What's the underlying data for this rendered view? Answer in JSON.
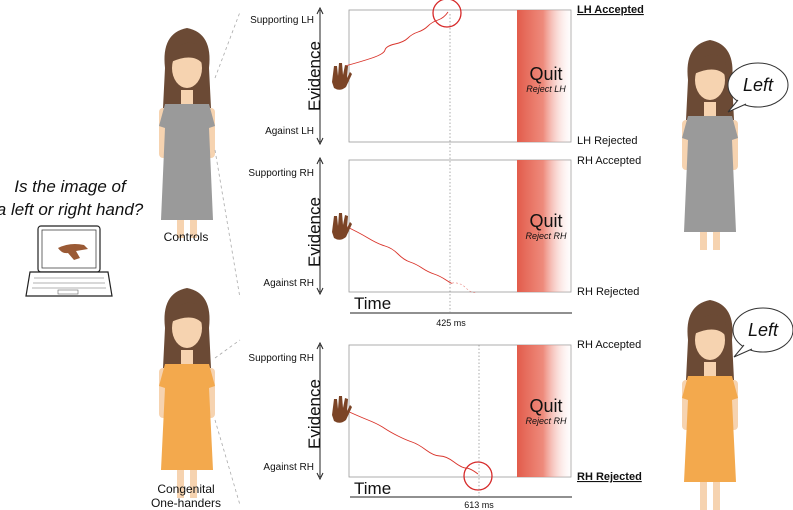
{
  "question": {
    "line1": "Is the image of",
    "line2": "a left or right hand?"
  },
  "groups": {
    "controls_label": "Controls",
    "congenital_line1": "Congenital",
    "congenital_line2": "One-handers"
  },
  "panel1": {
    "y_top": "Supporting LH",
    "y_bottom": "Against LH",
    "y_axis": "Evidence",
    "right_top": "LH Accepted",
    "right_bottom": "LH Rejected",
    "quit": "Quit",
    "reject": "Reject LH"
  },
  "panel2": {
    "y_top": "Supporting RH",
    "y_bottom": "Against RH",
    "y_axis": "Evidence",
    "right_top": "RH Accepted",
    "right_bottom": "RH Rejected",
    "quit": "Quit",
    "reject": "Reject RH",
    "time_label": "Time",
    "ms": "425 ms"
  },
  "panel3": {
    "y_top": "Supporting RH",
    "y_bottom": "Against RH",
    "y_axis": "Evidence",
    "right_top": "RH Accepted",
    "right_bottom": "RH Rejected",
    "quit": "Quit",
    "reject": "Reject RH",
    "time_label": "Time",
    "ms": "613 ms"
  },
  "bubbles": {
    "top": "Left",
    "bottom": "Left"
  },
  "colors": {
    "quit_band": "#e8604f",
    "trace": "#d9342b",
    "circle": "#d62828",
    "gray_dress": "#9a9a9a",
    "orange_dress": "#f3a94d",
    "skin": "#f6d3b0",
    "hair": "#6b4a35"
  }
}
